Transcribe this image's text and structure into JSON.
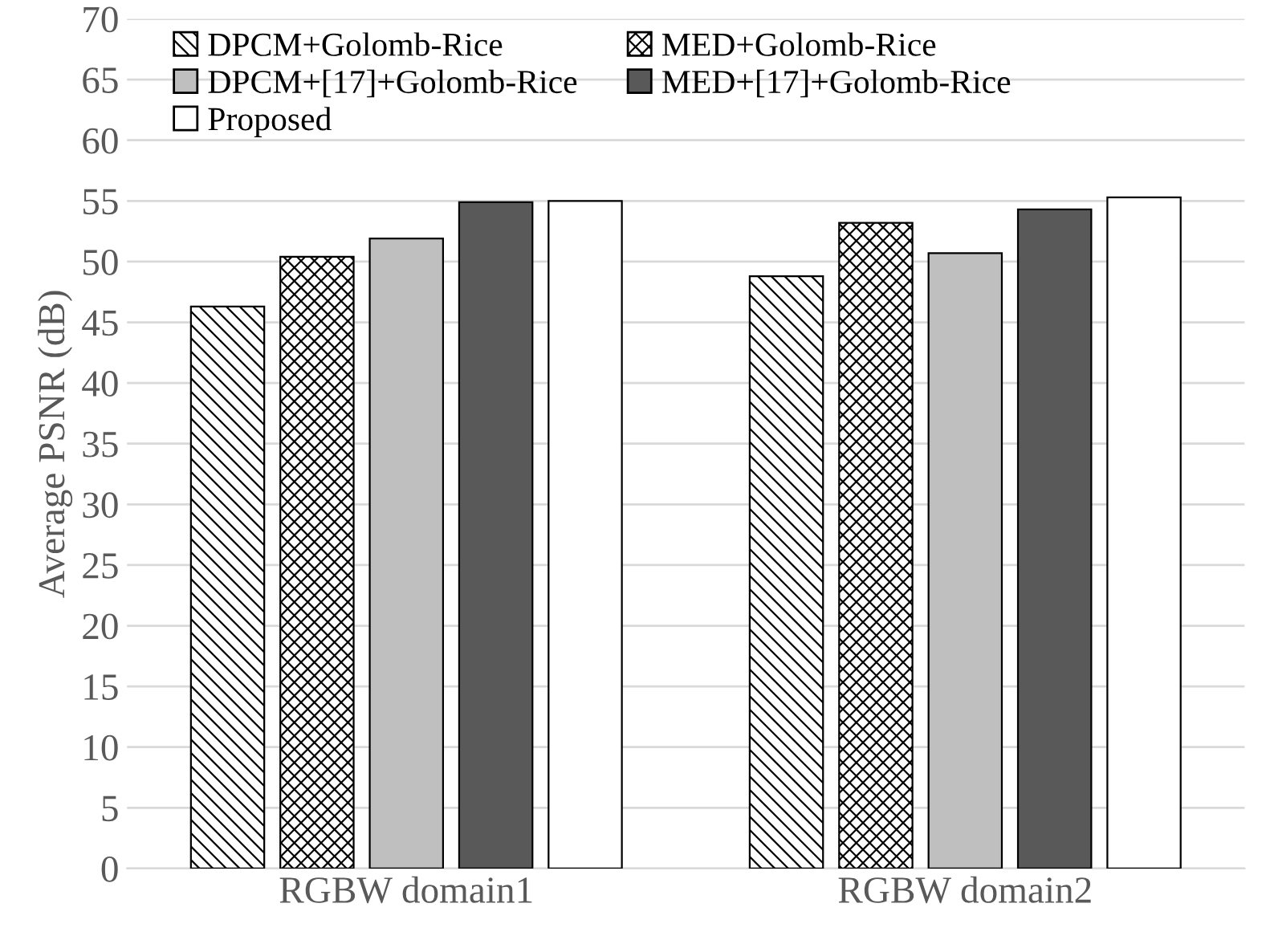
{
  "chart_data": {
    "type": "bar",
    "ylabel": "Average PSNR (dB)",
    "categories": [
      "RGBW domain1",
      "RGBW domain2"
    ],
    "series": [
      {
        "name": "DPCM+Golomb-Rice",
        "color": "#000000",
        "values": [
          46.3,
          48.8
        ]
      },
      {
        "name": "MED+Golomb-Rice",
        "color": "#000000",
        "values": [
          50.4,
          53.2
        ]
      },
      {
        "name": "DPCM+[17]+Golomb-Rice",
        "color": "#bfbfbf",
        "values": [
          51.9,
          50.7
        ]
      },
      {
        "name": "MED+[17]+Golomb-Rice",
        "color": "#595959",
        "values": [
          54.9,
          54.3
        ]
      },
      {
        "name": "Proposed",
        "color": "#ffffff",
        "values": [
          55.0,
          55.3
        ]
      }
    ],
    "ylim": [
      0,
      70
    ],
    "yticks": [
      0,
      5,
      10,
      15,
      20,
      25,
      30,
      35,
      40,
      45,
      50,
      55,
      60,
      65,
      70
    ],
    "grid": "y",
    "legend": "top left"
  }
}
